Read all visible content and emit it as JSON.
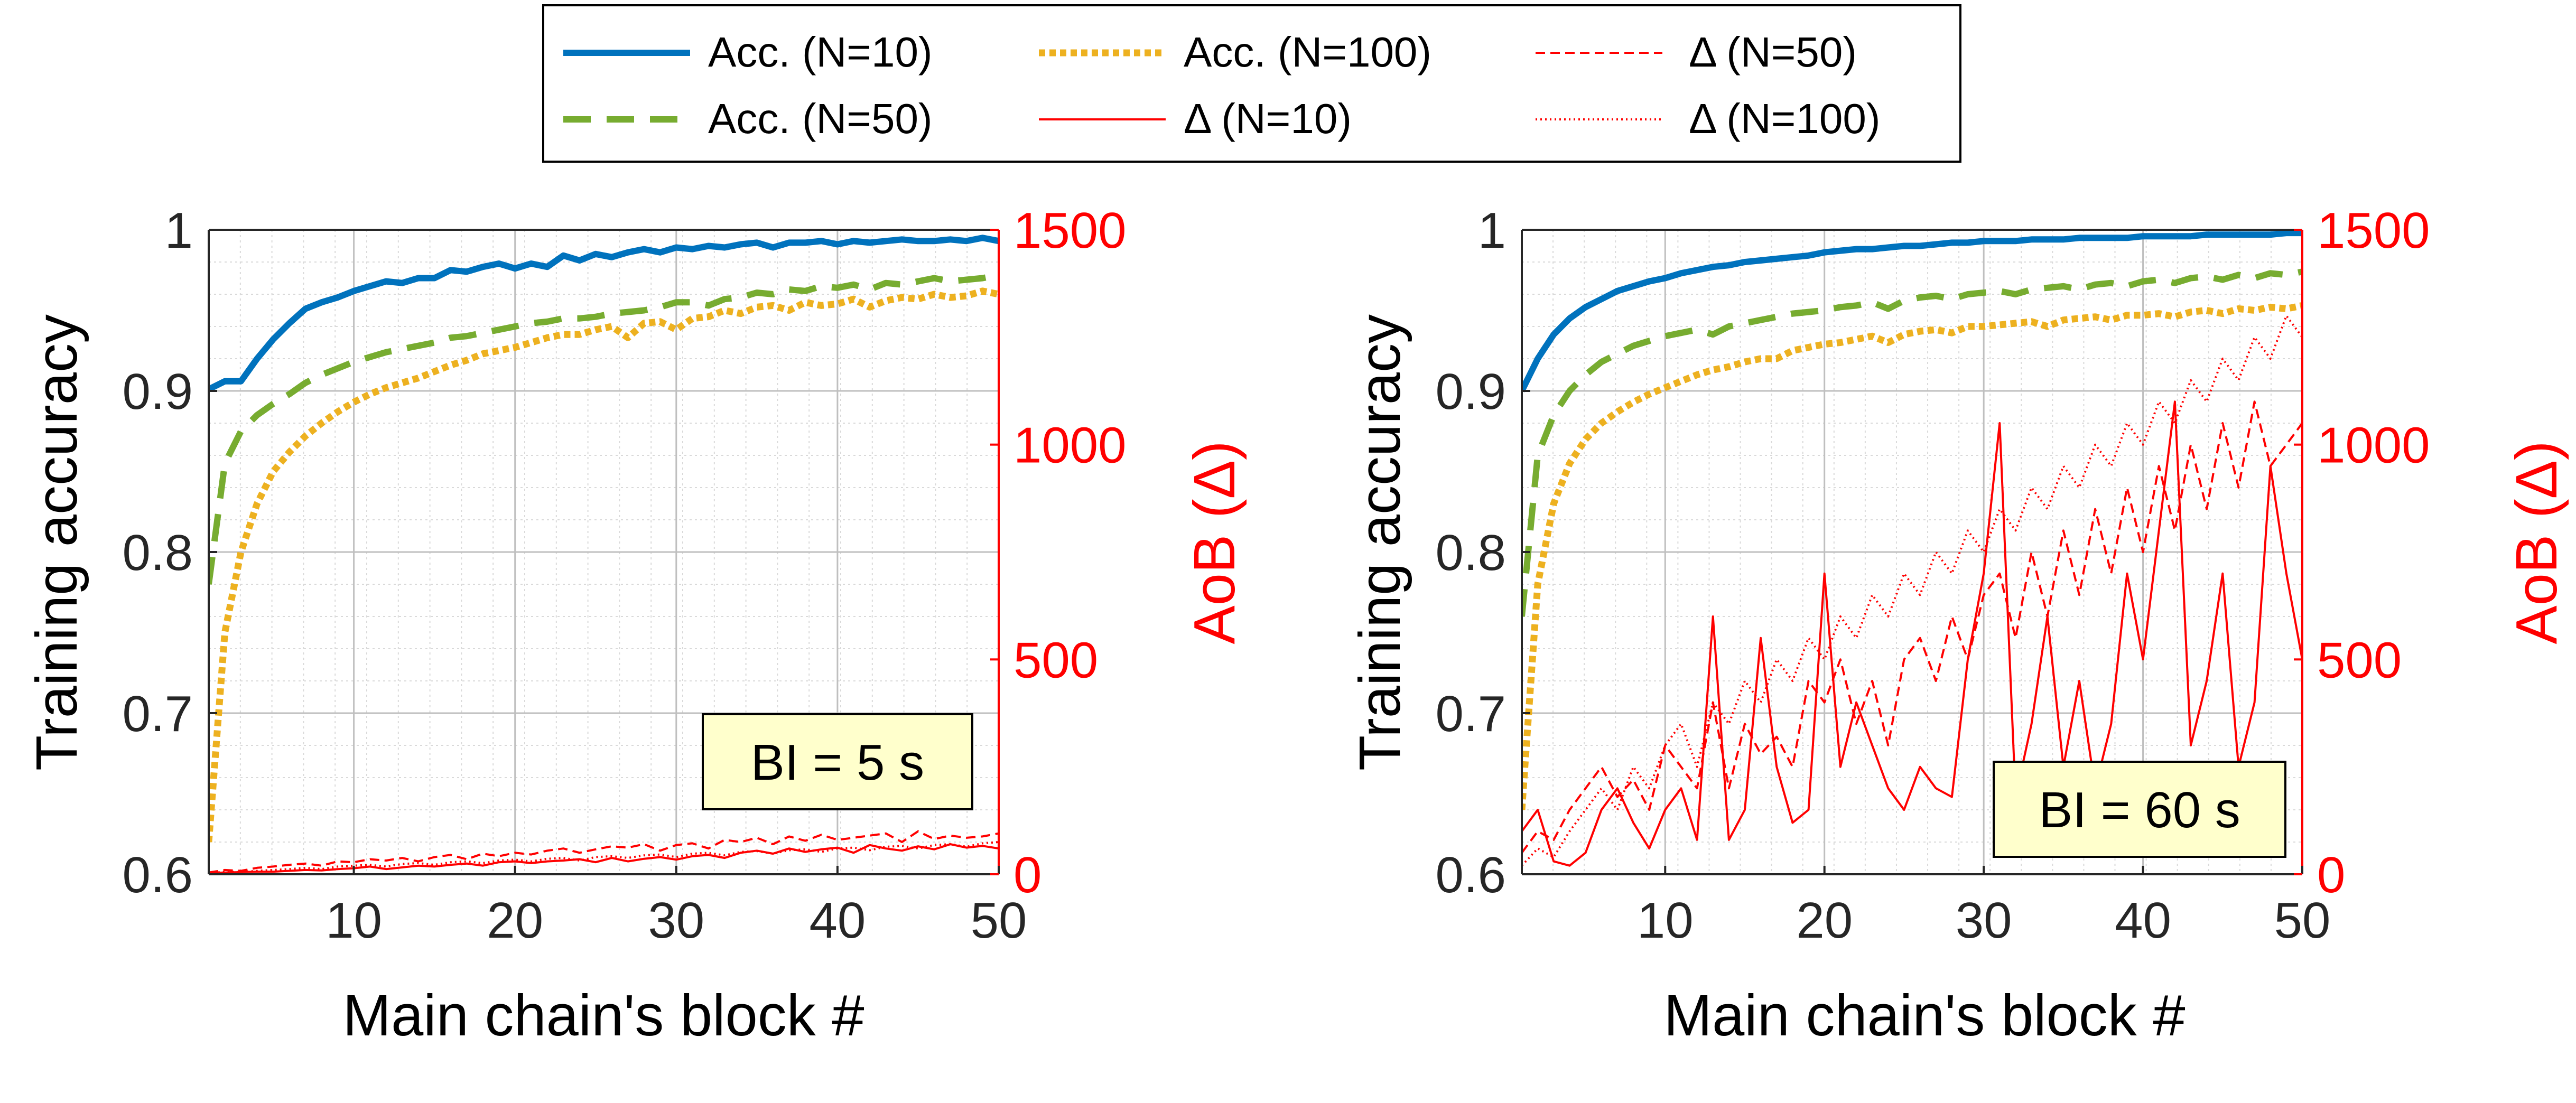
{
  "legend": {
    "columns": 3,
    "placement": "top-center",
    "entries": [
      {
        "label": "Acc. (N=10)",
        "color": "#0072BD",
        "style": "solid-thick"
      },
      {
        "label": "Acc. (N=100)",
        "color": "#EDB120",
        "style": "dotted-thick"
      },
      {
        "label": "Δ (N=50)",
        "color": "#FF0000",
        "style": "dashed-thin"
      },
      {
        "label": "Acc. (N=50)",
        "color": "#77AC30",
        "style": "dashed-thick"
      },
      {
        "label": "Δ (N=10)",
        "color": "#FF0000",
        "style": "solid-thin"
      },
      {
        "label": "Δ (N=100)",
        "color": "#FF0000",
        "style": "dotted-thin"
      }
    ]
  },
  "colors": {
    "acc_n10": "#0072BD",
    "acc_n50": "#77AC30",
    "acc_n100": "#EDB120",
    "delta": "#FF0000",
    "annotation_bg": "#FFFFCC"
  },
  "chart_data": [
    {
      "type": "line",
      "annotation": "BI = 5 s",
      "xlabel": "Main chain's block #",
      "ylabel": "Training accuracy",
      "y2label": "AoB (Δ)",
      "xlim": [
        1,
        50
      ],
      "ylim": [
        0.6,
        1
      ],
      "y2lim": [
        0,
        1500
      ],
      "xticks": [
        10,
        20,
        30,
        40,
        50
      ],
      "xtick_labels": [
        "10",
        "20",
        "30",
        "40",
        "50"
      ],
      "yticks": [
        0.6,
        0.7,
        0.8,
        0.9,
        1
      ],
      "ytick_labels": [
        "0.6",
        "0.7",
        "0.8",
        "0.9",
        "1"
      ],
      "y2ticks": [
        0,
        500,
        1000,
        1500
      ],
      "y2tick_labels": [
        "0",
        "500",
        "1000",
        "1500"
      ],
      "grid": true,
      "x": [
        1,
        2,
        3,
        4,
        5,
        6,
        7,
        8,
        9,
        10,
        11,
        12,
        13,
        14,
        15,
        16,
        17,
        18,
        19,
        20,
        21,
        22,
        23,
        24,
        25,
        26,
        27,
        28,
        29,
        30,
        31,
        32,
        33,
        34,
        35,
        36,
        37,
        38,
        39,
        40,
        41,
        42,
        43,
        44,
        45,
        46,
        47,
        48,
        49,
        50
      ],
      "series": [
        {
          "name": "Acc. (N=10)",
          "axis": "left",
          "values": [
            0.901,
            0.906,
            0.906,
            0.92,
            0.932,
            0.942,
            0.951,
            0.955,
            0.958,
            0.962,
            0.965,
            0.968,
            0.967,
            0.97,
            0.97,
            0.975,
            0.974,
            0.977,
            0.979,
            0.976,
            0.979,
            0.977,
            0.984,
            0.981,
            0.985,
            0.983,
            0.986,
            0.988,
            0.986,
            0.989,
            0.988,
            0.99,
            0.989,
            0.991,
            0.992,
            0.989,
            0.992,
            0.992,
            0.993,
            0.991,
            0.993,
            0.992,
            0.993,
            0.994,
            0.993,
            0.993,
            0.994,
            0.993,
            0.995,
            0.993
          ]
        },
        {
          "name": "Acc. (N=50)",
          "axis": "left",
          "values": [
            0.78,
            0.855,
            0.875,
            0.885,
            0.892,
            0.898,
            0.905,
            0.91,
            0.914,
            0.918,
            0.921,
            0.924,
            0.926,
            0.928,
            0.93,
            0.933,
            0.934,
            0.936,
            0.938,
            0.94,
            0.942,
            0.943,
            0.945,
            0.945,
            0.946,
            0.948,
            0.949,
            0.95,
            0.952,
            0.955,
            0.955,
            0.953,
            0.957,
            0.958,
            0.961,
            0.96,
            0.963,
            0.962,
            0.965,
            0.964,
            0.966,
            0.963,
            0.967,
            0.966,
            0.968,
            0.97,
            0.968,
            0.969,
            0.97,
            0.972
          ]
        },
        {
          "name": "Acc. (N=100)",
          "axis": "left",
          "values": [
            0.62,
            0.75,
            0.8,
            0.83,
            0.85,
            0.862,
            0.872,
            0.88,
            0.887,
            0.893,
            0.898,
            0.902,
            0.905,
            0.908,
            0.912,
            0.916,
            0.919,
            0.923,
            0.925,
            0.927,
            0.93,
            0.933,
            0.935,
            0.935,
            0.938,
            0.94,
            0.933,
            0.942,
            0.943,
            0.938,
            0.945,
            0.946,
            0.95,
            0.948,
            0.952,
            0.953,
            0.95,
            0.955,
            0.953,
            0.954,
            0.957,
            0.952,
            0.956,
            0.958,
            0.957,
            0.96,
            0.958,
            0.959,
            0.962,
            0.96
          ]
        },
        {
          "name": "Δ (N=10)",
          "axis": "right",
          "values": [
            3,
            4,
            5,
            6,
            6,
            8,
            10,
            9,
            12,
            14,
            18,
            12,
            16,
            20,
            18,
            22,
            25,
            20,
            28,
            30,
            26,
            30,
            32,
            35,
            28,
            38,
            30,
            36,
            40,
            34,
            42,
            45,
            38,
            50,
            55,
            48,
            60,
            52,
            58,
            62,
            50,
            68,
            60,
            55,
            65,
            58,
            70,
            62,
            66,
            60
          ]
        },
        {
          "name": "Δ (N=50)",
          "axis": "right",
          "values": [
            4,
            10,
            8,
            15,
            18,
            22,
            25,
            20,
            30,
            28,
            35,
            32,
            38,
            30,
            40,
            45,
            35,
            48,
            42,
            50,
            46,
            55,
            60,
            50,
            58,
            65,
            62,
            70,
            55,
            68,
            72,
            60,
            80,
            75,
            85,
            70,
            88,
            78,
            92,
            80,
            85,
            90,
            95,
            75,
            100,
            82,
            90,
            85,
            88,
            95
          ]
        },
        {
          "name": "Δ (N=100)",
          "axis": "right",
          "values": [
            2,
            6,
            5,
            8,
            10,
            12,
            15,
            12,
            18,
            20,
            22,
            18,
            24,
            26,
            22,
            28,
            30,
            26,
            32,
            34,
            30,
            36,
            38,
            32,
            40,
            42,
            38,
            44,
            46,
            40,
            48,
            50,
            44,
            52,
            54,
            48,
            56,
            58,
            52,
            60,
            62,
            56,
            64,
            66,
            60,
            68,
            70,
            64,
            72,
            75
          ]
        }
      ]
    },
    {
      "type": "line",
      "annotation": "BI = 60 s",
      "xlabel": "Main chain's block #",
      "ylabel": "Training accuracy",
      "y2label": "AoB (Δ)",
      "xlim": [
        1,
        50
      ],
      "ylim": [
        0.6,
        1
      ],
      "y2lim": [
        0,
        1500
      ],
      "xticks": [
        10,
        20,
        30,
        40,
        50
      ],
      "xtick_labels": [
        "10",
        "20",
        "30",
        "40",
        "50"
      ],
      "yticks": [
        0.6,
        0.7,
        0.8,
        0.9,
        1
      ],
      "ytick_labels": [
        "0.6",
        "0.7",
        "0.8",
        "0.9",
        "1"
      ],
      "y2ticks": [
        0,
        500,
        1000,
        1500
      ],
      "y2tick_labels": [
        "0",
        "500",
        "1000",
        "1500"
      ],
      "grid": true,
      "x": [
        1,
        2,
        3,
        4,
        5,
        6,
        7,
        8,
        9,
        10,
        11,
        12,
        13,
        14,
        15,
        16,
        17,
        18,
        19,
        20,
        21,
        22,
        23,
        24,
        25,
        26,
        27,
        28,
        29,
        30,
        31,
        32,
        33,
        34,
        35,
        36,
        37,
        38,
        39,
        40,
        41,
        42,
        43,
        44,
        45,
        46,
        47,
        48,
        49,
        50
      ],
      "series": [
        {
          "name": "Acc. (N=10)",
          "axis": "left",
          "values": [
            0.9,
            0.92,
            0.935,
            0.945,
            0.952,
            0.957,
            0.962,
            0.965,
            0.968,
            0.97,
            0.973,
            0.975,
            0.977,
            0.978,
            0.98,
            0.981,
            0.982,
            0.983,
            0.984,
            0.986,
            0.987,
            0.988,
            0.988,
            0.989,
            0.99,
            0.99,
            0.991,
            0.992,
            0.992,
            0.993,
            0.993,
            0.993,
            0.994,
            0.994,
            0.994,
            0.995,
            0.995,
            0.995,
            0.995,
            0.996,
            0.996,
            0.996,
            0.996,
            0.997,
            0.997,
            0.997,
            0.997,
            0.997,
            0.998,
            0.998
          ]
        },
        {
          "name": "Acc. (N=50)",
          "axis": "left",
          "values": [
            0.76,
            0.86,
            0.885,
            0.9,
            0.91,
            0.918,
            0.923,
            0.928,
            0.931,
            0.934,
            0.936,
            0.938,
            0.935,
            0.94,
            0.942,
            0.944,
            0.946,
            0.948,
            0.949,
            0.95,
            0.952,
            0.953,
            0.955,
            0.951,
            0.956,
            0.958,
            0.959,
            0.957,
            0.96,
            0.961,
            0.962,
            0.96,
            0.963,
            0.964,
            0.965,
            0.963,
            0.966,
            0.967,
            0.965,
            0.968,
            0.969,
            0.967,
            0.97,
            0.971,
            0.969,
            0.972,
            0.97,
            0.973,
            0.972,
            0.974
          ]
        },
        {
          "name": "Acc. (N=100)",
          "axis": "left",
          "values": [
            0.64,
            0.78,
            0.83,
            0.855,
            0.87,
            0.88,
            0.887,
            0.893,
            0.898,
            0.902,
            0.906,
            0.91,
            0.913,
            0.915,
            0.918,
            0.92,
            0.92,
            0.925,
            0.927,
            0.929,
            0.93,
            0.932,
            0.934,
            0.93,
            0.935,
            0.937,
            0.938,
            0.936,
            0.94,
            0.94,
            0.941,
            0.942,
            0.943,
            0.94,
            0.944,
            0.945,
            0.946,
            0.944,
            0.947,
            0.947,
            0.948,
            0.946,
            0.949,
            0.95,
            0.948,
            0.951,
            0.95,
            0.952,
            0.951,
            0.953
          ]
        },
        {
          "name": "Δ (N=10)",
          "axis": "right",
          "values": [
            100,
            150,
            30,
            20,
            50,
            150,
            200,
            120,
            60,
            150,
            200,
            80,
            600,
            80,
            150,
            550,
            250,
            120,
            150,
            700,
            250,
            400,
            300,
            200,
            150,
            250,
            200,
            180,
            500,
            700,
            1050,
            180,
            350,
            600,
            250,
            450,
            200,
            350,
            700,
            500,
            800,
            1100,
            300,
            450,
            700,
            250,
            400,
            950,
            700,
            500
          ]
        },
        {
          "name": "Δ (N=50)",
          "axis": "right",
          "values": [
            50,
            100,
            80,
            150,
            200,
            250,
            180,
            220,
            150,
            300,
            250,
            200,
            400,
            200,
            350,
            280,
            320,
            250,
            450,
            400,
            500,
            350,
            450,
            300,
            500,
            550,
            450,
            600,
            500,
            650,
            700,
            550,
            750,
            600,
            800,
            650,
            850,
            700,
            900,
            750,
            950,
            800,
            1000,
            850,
            1050,
            900,
            1100,
            950,
            1000,
            1050
          ]
        },
        {
          "name": "Δ (N=100)",
          "axis": "right",
          "values": [
            20,
            60,
            40,
            100,
            150,
            200,
            150,
            250,
            200,
            300,
            350,
            250,
            400,
            350,
            450,
            400,
            500,
            450,
            550,
            500,
            600,
            550,
            650,
            600,
            700,
            650,
            750,
            700,
            800,
            750,
            850,
            800,
            900,
            850,
            950,
            900,
            1000,
            950,
            1050,
            1000,
            1100,
            1050,
            1150,
            1100,
            1200,
            1150,
            1250,
            1200,
            1300,
            1250
          ]
        }
      ]
    }
  ]
}
